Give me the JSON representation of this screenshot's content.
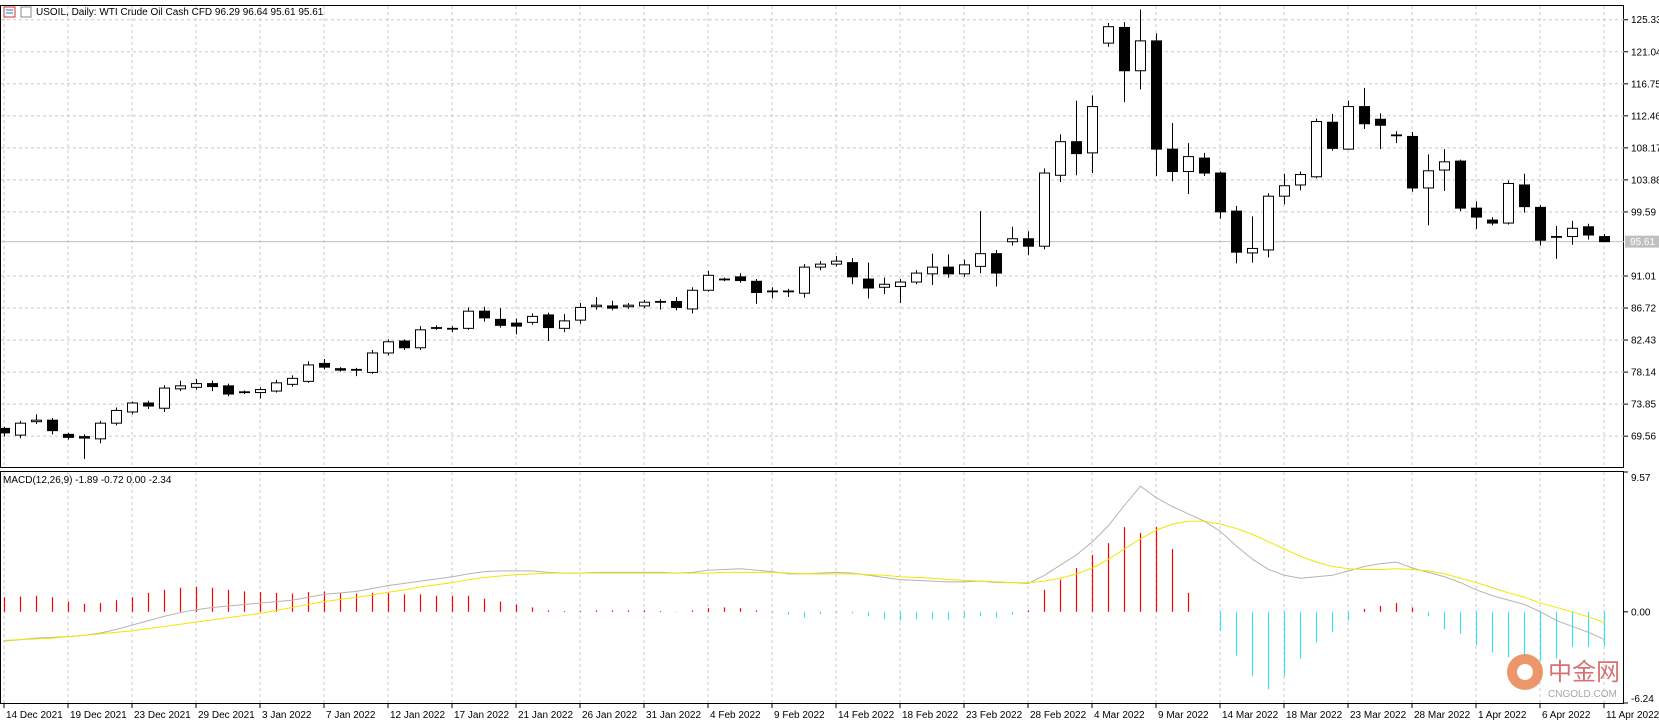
{
  "chart_data": [
    {
      "type": "candlestick",
      "title": "USOIL, Daily:  WTI Crude Oil Cash CFD  96.29 96.64 95.61 95.61",
      "categories": [
        "14 Dec 2021",
        null,
        null,
        null,
        "19 Dec 2021",
        null,
        null,
        null,
        "23 Dec 2021",
        null,
        null,
        null,
        "29 Dec 2021",
        null,
        null,
        null,
        "3 Jan 2022",
        null,
        null,
        null,
        "7 Jan 2022",
        null,
        null,
        null,
        "12 Jan 2022",
        null,
        null,
        null,
        "17 Jan 2022",
        null,
        null,
        null,
        "21 Jan 2022",
        null,
        null,
        null,
        "26 Jan 2022",
        null,
        null,
        null,
        "31 Jan 2022",
        null,
        null,
        null,
        "4 Feb 2022",
        null,
        null,
        null,
        "9 Feb 2022",
        null,
        null,
        null,
        "14 Feb 2022",
        null,
        null,
        null,
        "18 Feb 2022",
        null,
        null,
        null,
        "23 Feb 2022",
        null,
        null,
        null,
        "28 Feb 2022",
        null,
        null,
        null,
        "4 Mar 2022",
        null,
        null,
        null,
        "9 Mar 2022",
        null,
        null,
        null,
        "14 Mar 2022",
        null,
        null,
        null,
        "18 Mar 2022",
        null,
        null,
        null,
        "23 Mar 2022",
        null,
        null,
        null,
        "28 Mar 2022",
        null,
        null,
        null,
        "1 Apr 2022",
        null,
        null,
        null,
        "6 Apr 2022",
        null,
        null,
        null,
        "11 Apr 2022"
      ],
      "open": [
        70.6,
        69.7,
        71.5,
        71.7,
        69.8,
        69.5,
        69.2,
        71.3,
        72.8,
        74.0,
        73.3,
        75.9,
        76.1,
        76.6,
        76.3,
        75.4,
        75.4,
        75.6,
        76.5,
        76.9,
        79.3,
        78.6,
        78.4,
        78.1,
        80.7,
        82.3,
        81.4,
        84.0,
        84.0,
        84.0,
        86.3,
        85.2,
        84.7,
        84.8,
        85.8,
        84.0,
        85.1,
        86.9,
        87.0,
        86.9,
        87.0,
        87.6,
        87.6,
        86.6,
        89.1,
        90.6,
        90.9,
        90.3,
        88.9,
        89.0,
        88.7,
        92.2,
        92.6,
        92.8,
        90.6,
        89.5,
        89.6,
        90.2,
        91.3,
        92.2,
        91.3,
        92.3,
        94.0,
        95.6,
        96.0,
        95.0,
        104.5,
        109.0,
        107.5,
        122.2,
        124.3,
        118.5,
        122.5,
        108.0,
        105.0,
        106.8,
        104.8,
        99.7,
        94.1,
        94.5,
        101.7,
        103.2,
        104.3,
        111.6,
        108.0,
        113.7,
        112.0,
        109.9,
        109.7,
        102.8,
        105.2,
        106.4,
        100.1,
        98.5,
        98.1,
        103.2,
        100.2,
        96.3,
        96.3,
        97.6,
        96.29
      ],
      "high": [
        70.8,
        71.6,
        72.5,
        72.0,
        70.0,
        69.8,
        71.6,
        73.4,
        74.2,
        74.3,
        76.4,
        77.0,
        77.2,
        77.0,
        76.6,
        75.7,
        76.1,
        77.1,
        77.7,
        79.6,
        79.9,
        78.8,
        78.7,
        81.1,
        82.5,
        82.5,
        84.3,
        84.4,
        84.3,
        86.8,
        86.9,
        86.7,
        85.3,
        86.0,
        86.1,
        85.9,
        87.4,
        88.2,
        87.7,
        87.4,
        87.8,
        87.9,
        88.2,
        89.5,
        91.7,
        90.8,
        91.4,
        90.6,
        89.5,
        89.3,
        92.6,
        93.0,
        93.7,
        93.4,
        92.8,
        90.8,
        90.6,
        91.8,
        94.0,
        93.9,
        93.2,
        99.7,
        94.5,
        97.6,
        97.0,
        105.4,
        110.0,
        114.5,
        115.2,
        124.9,
        125.0,
        126.7,
        123.5,
        111.5,
        108.8,
        107.5,
        105.0,
        100.4,
        99.0,
        102.1,
        104.7,
        105.0,
        112.1,
        112.7,
        114.5,
        116.2,
        112.8,
        110.4,
        110.3,
        107.3,
        108.0,
        106.6,
        101.0,
        98.9,
        103.8,
        104.7,
        100.5,
        97.7,
        98.4,
        98.0,
        96.64
      ],
      "low": [
        69.5,
        69.3,
        71.2,
        69.8,
        69.1,
        66.5,
        68.6,
        71.0,
        72.5,
        73.2,
        72.8,
        75.6,
        75.8,
        75.6,
        74.9,
        75.2,
        74.6,
        75.4,
        76.2,
        76.7,
        78.5,
        78.2,
        77.6,
        77.9,
        80.4,
        81.1,
        81.1,
        83.8,
        83.5,
        83.8,
        84.9,
        84.1,
        83.2,
        84.5,
        82.3,
        83.5,
        84.6,
        86.5,
        86.4,
        86.6,
        86.7,
        86.5,
        86.4,
        86.0,
        88.9,
        90.3,
        90.1,
        87.3,
        88.0,
        88.2,
        88.1,
        91.8,
        92.3,
        89.9,
        88.0,
        88.6,
        87.4,
        89.9,
        89.8,
        90.8,
        90.9,
        91.4,
        89.6,
        95.1,
        93.8,
        94.6,
        103.6,
        104.5,
        104.8,
        121.7,
        114.3,
        116.0,
        104.4,
        103.7,
        102.0,
        104.4,
        98.7,
        92.7,
        92.8,
        93.5,
        100.6,
        102.5,
        104.1,
        107.8,
        107.9,
        110.7,
        108.0,
        108.8,
        102.3,
        97.8,
        102.4,
        99.7,
        97.3,
        97.8,
        97.9,
        99.5,
        95.1,
        93.3,
        95.2,
        95.9,
        95.61
      ],
      "close": [
        70.0,
        71.3,
        71.7,
        70.3,
        69.4,
        69.3,
        71.3,
        73.0,
        74.0,
        73.6,
        76.0,
        76.3,
        76.6,
        76.2,
        75.2,
        75.5,
        75.8,
        76.7,
        77.3,
        79.1,
        78.8,
        78.4,
        78.5,
        80.7,
        82.2,
        81.4,
        83.8,
        84.1,
        83.9,
        86.3,
        85.4,
        84.4,
        84.3,
        85.6,
        84.1,
        85.0,
        86.8,
        87.1,
        86.7,
        87.1,
        87.5,
        87.5,
        86.8,
        89.1,
        91.1,
        90.5,
        90.4,
        88.8,
        89.0,
        88.9,
        92.2,
        92.6,
        93.0,
        90.9,
        89.4,
        89.9,
        90.2,
        91.4,
        92.2,
        91.3,
        92.5,
        94.0,
        91.4,
        96.0,
        95.0,
        104.8,
        109.0,
        107.4,
        113.7,
        124.4,
        118.5,
        122.5,
        108.0,
        105.0,
        107.0,
        104.8,
        99.6,
        94.2,
        94.7,
        101.7,
        103.1,
        104.6,
        111.7,
        108.1,
        113.7,
        111.4,
        111.2,
        109.9,
        102.8,
        105.1,
        106.3,
        100.1,
        98.9,
        98.1,
        103.4,
        100.3,
        95.8,
        96.3,
        97.4,
        96.5,
        95.61
      ],
      "up_color": "#ffffff",
      "down_color": "#000000",
      "ylim": [
        65.43,
        127.17
      ],
      "yticks": [
        125.33,
        121.04,
        116.75,
        112.46,
        108.17,
        103.88,
        99.59,
        91.01,
        86.72,
        82.43,
        78.14,
        73.85,
        69.56
      ],
      "last_price": 95.61,
      "grid": true
    },
    {
      "type": "macd",
      "title": "MACD(12,26,9) -1.89 -0.72 0.00 -2.34",
      "values": [
        1.0,
        1.05,
        1.1,
        1.0,
        0.7,
        0.55,
        0.6,
        0.8,
        1.0,
        1.3,
        1.5,
        1.65,
        1.7,
        1.65,
        1.5,
        1.4,
        1.35,
        1.3,
        1.25,
        1.35,
        1.4,
        1.3,
        1.25,
        1.3,
        1.3,
        1.2,
        1.2,
        1.1,
        1.1,
        1.1,
        0.9,
        0.7,
        0.5,
        0.3,
        0.1,
        0.05,
        0.05,
        0.1,
        0.1,
        0.1,
        0.1,
        0.05,
        -0.05,
        0.1,
        0.25,
        0.3,
        0.25,
        0.1,
        -0.1,
        -0.2,
        -0.4,
        -0.15,
        -0.1,
        -0.1,
        -0.3,
        -0.5,
        -0.6,
        -0.5,
        -0.5,
        -0.55,
        -0.4,
        -0.3,
        -0.4,
        -0.2,
        0.1,
        1.5,
        2.2,
        3.0,
        3.9,
        4.7,
        5.8,
        5.4,
        5.8,
        4.3,
        1.3,
        0,
        -1.3,
        -3.0,
        -4.4,
        -5.3,
        -4.4,
        -3.2,
        -2.1,
        -1.4,
        -0.6,
        0.2,
        0.4,
        0.6,
        0.3,
        -0.3,
        -1.2,
        -1.5,
        -2.3,
        -2.8,
        -3.1,
        -3.0,
        -3.4,
        -3.2,
        -2.4,
        -2.4,
        -2.34
      ],
      "up_color": "#ff0000",
      "down_color": "#40e0e8",
      "lines": [
        {
          "color": "#b4b4b4",
          "values": [
            -2.0,
            -1.9,
            -1.8,
            -1.75,
            -1.7,
            -1.6,
            -1.45,
            -1.2,
            -0.9,
            -0.6,
            -0.3,
            -0.05,
            0.15,
            0.3,
            0.4,
            0.5,
            0.6,
            0.7,
            0.8,
            1.0,
            1.2,
            1.3,
            1.4,
            1.6,
            1.8,
            1.95,
            2.1,
            2.25,
            2.4,
            2.6,
            2.75,
            2.8,
            2.8,
            2.8,
            2.7,
            2.65,
            2.65,
            2.7,
            2.7,
            2.7,
            2.7,
            2.7,
            2.65,
            2.7,
            2.85,
            2.9,
            2.95,
            2.85,
            2.75,
            2.6,
            2.6,
            2.65,
            2.7,
            2.65,
            2.5,
            2.35,
            2.2,
            2.15,
            2.1,
            2.05,
            2.05,
            2.1,
            2.0,
            2.0,
            1.95,
            2.5,
            3.2,
            3.9,
            4.8,
            5.9,
            7.3,
            8.6,
            7.8,
            7.2,
            6.7,
            6.2,
            5.5,
            4.5,
            3.6,
            2.9,
            2.5,
            2.3,
            2.4,
            2.5,
            2.8,
            3.1,
            3.3,
            3.4,
            3.0,
            2.7,
            2.4,
            2.0,
            1.5,
            1.1,
            0.8,
            0.5,
            0.0,
            -0.6,
            -1.0,
            -1.4,
            -1.89
          ]
        },
        {
          "color": "#f2e600",
          "values": [
            -1.95,
            -1.9,
            -1.85,
            -1.8,
            -1.7,
            -1.6,
            -1.5,
            -1.4,
            -1.3,
            -1.15,
            -1.0,
            -0.85,
            -0.7,
            -0.55,
            -0.4,
            -0.25,
            -0.1,
            0.1,
            0.3,
            0.5,
            0.7,
            0.85,
            1.0,
            1.15,
            1.35,
            1.5,
            1.7,
            1.85,
            2.0,
            2.2,
            2.35,
            2.45,
            2.55,
            2.6,
            2.65,
            2.65,
            2.65,
            2.65,
            2.65,
            2.65,
            2.65,
            2.65,
            2.65,
            2.65,
            2.65,
            2.7,
            2.7,
            2.7,
            2.7,
            2.65,
            2.6,
            2.6,
            2.6,
            2.6,
            2.55,
            2.5,
            2.4,
            2.35,
            2.3,
            2.2,
            2.15,
            2.1,
            2.05,
            2.0,
            2.0,
            2.1,
            2.3,
            2.6,
            3.0,
            3.6,
            4.3,
            5.0,
            5.6,
            6.0,
            6.2,
            6.2,
            6.0,
            5.7,
            5.3,
            4.8,
            4.3,
            3.8,
            3.4,
            3.1,
            2.95,
            2.9,
            2.9,
            2.95,
            2.9,
            2.8,
            2.6,
            2.3,
            2.0,
            1.65,
            1.3,
            1.0,
            0.6,
            0.3,
            0.0,
            -0.35,
            -0.72
          ]
        }
      ],
      "ylim": [
        -6.24,
        9.57
      ],
      "yticks": [
        9.57,
        {
          "value": 0,
          "label": "0.00"
        },
        -6.24
      ]
    }
  ],
  "watermark": {
    "name": "中金网",
    "site": "CNGOLD.COM"
  }
}
